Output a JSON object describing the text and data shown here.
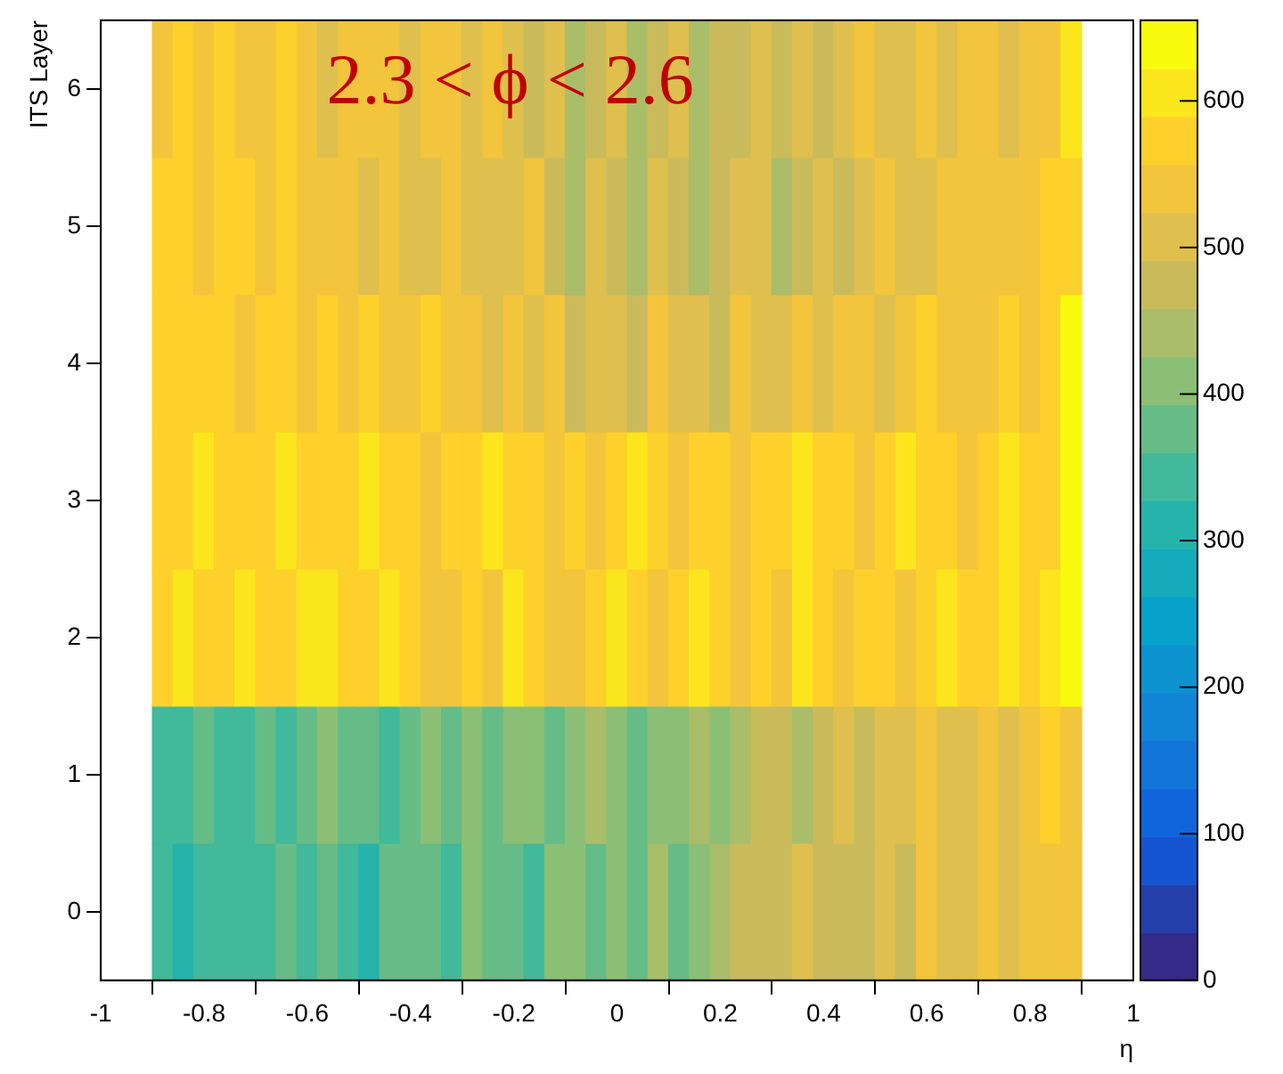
{
  "chart_data": {
    "type": "heatmap",
    "title": "2.3 < ϕ < 2.6",
    "xlabel": "η",
    "ylabel": "ITS Layer",
    "x": [
      -0.88,
      -0.84,
      -0.8,
      -0.76,
      -0.72,
      -0.68,
      -0.64,
      -0.6,
      -0.56,
      -0.52,
      -0.48,
      -0.44,
      -0.4,
      -0.36,
      -0.32,
      -0.28,
      -0.24,
      -0.2,
      -0.16,
      -0.12,
      -0.08,
      -0.04,
      0,
      0.04,
      0.08,
      0.12,
      0.16,
      0.2,
      0.24,
      0.28,
      0.32,
      0.36,
      0.4,
      0.44,
      0.48,
      0.52,
      0.56,
      0.6,
      0.64,
      0.68,
      0.72,
      0.76,
      0.8,
      0.84,
      0.88
    ],
    "xlim": [
      -1,
      1
    ],
    "xticks": [
      -1,
      -0.8,
      -0.6,
      -0.4,
      -0.2,
      0,
      0.2,
      0.4,
      0.6,
      0.8,
      1
    ],
    "y_categories": [
      "6",
      "5",
      "4",
      "3",
      "2",
      "1",
      "0"
    ],
    "cells": [
      [
        540,
        573,
        540,
        573,
        540,
        540,
        573,
        540,
        508,
        540,
        540,
        540,
        508,
        540,
        540,
        508,
        540,
        508,
        475,
        508,
        442,
        475,
        508,
        442,
        475,
        508,
        442,
        475,
        475,
        508,
        475,
        508,
        475,
        508,
        540,
        508,
        508,
        540,
        508,
        540,
        540,
        508,
        540,
        540,
        606
      ],
      [
        573,
        573,
        540,
        573,
        573,
        540,
        573,
        540,
        540,
        540,
        508,
        540,
        508,
        508,
        540,
        508,
        508,
        508,
        540,
        475,
        442,
        508,
        475,
        442,
        508,
        475,
        442,
        475,
        508,
        508,
        442,
        475,
        508,
        475,
        508,
        540,
        508,
        508,
        540,
        540,
        540,
        540,
        540,
        573,
        573
      ],
      [
        573,
        573,
        573,
        573,
        540,
        573,
        573,
        540,
        573,
        540,
        573,
        540,
        540,
        573,
        540,
        540,
        508,
        540,
        508,
        540,
        475,
        508,
        508,
        475,
        540,
        508,
        508,
        475,
        540,
        508,
        508,
        540,
        508,
        540,
        540,
        508,
        540,
        573,
        540,
        540,
        540,
        573,
        540,
        573,
        639
      ],
      [
        573,
        573,
        606,
        573,
        573,
        573,
        606,
        573,
        573,
        573,
        606,
        573,
        573,
        540,
        573,
        573,
        606,
        573,
        573,
        540,
        573,
        540,
        573,
        606,
        573,
        540,
        573,
        573,
        540,
        573,
        573,
        606,
        573,
        573,
        540,
        573,
        606,
        573,
        573,
        540,
        573,
        606,
        573,
        573,
        639
      ],
      [
        573,
        606,
        573,
        573,
        606,
        573,
        573,
        606,
        606,
        573,
        573,
        606,
        573,
        540,
        540,
        573,
        540,
        606,
        573,
        540,
        540,
        573,
        606,
        573,
        540,
        573,
        606,
        573,
        540,
        573,
        540,
        606,
        573,
        540,
        573,
        573,
        540,
        573,
        606,
        573,
        573,
        606,
        573,
        606,
        639
      ],
      [
        344,
        344,
        377,
        344,
        344,
        377,
        344,
        377,
        409,
        377,
        377,
        344,
        377,
        409,
        377,
        409,
        377,
        409,
        409,
        377,
        409,
        442,
        409,
        377,
        409,
        409,
        442,
        409,
        442,
        475,
        475,
        442,
        475,
        508,
        475,
        508,
        508,
        540,
        508,
        508,
        540,
        508,
        540,
        573,
        540
      ],
      [
        344,
        311,
        344,
        344,
        344,
        344,
        377,
        344,
        377,
        344,
        311,
        377,
        377,
        377,
        344,
        409,
        377,
        377,
        344,
        409,
        409,
        377,
        409,
        377,
        442,
        377,
        409,
        442,
        475,
        475,
        475,
        508,
        475,
        475,
        475,
        508,
        475,
        540,
        508,
        508,
        540,
        508,
        540,
        540,
        540
      ]
    ],
    "clim": [
      0,
      655
    ],
    "cticks": [
      0,
      100,
      200,
      300,
      400,
      500,
      600
    ]
  }
}
